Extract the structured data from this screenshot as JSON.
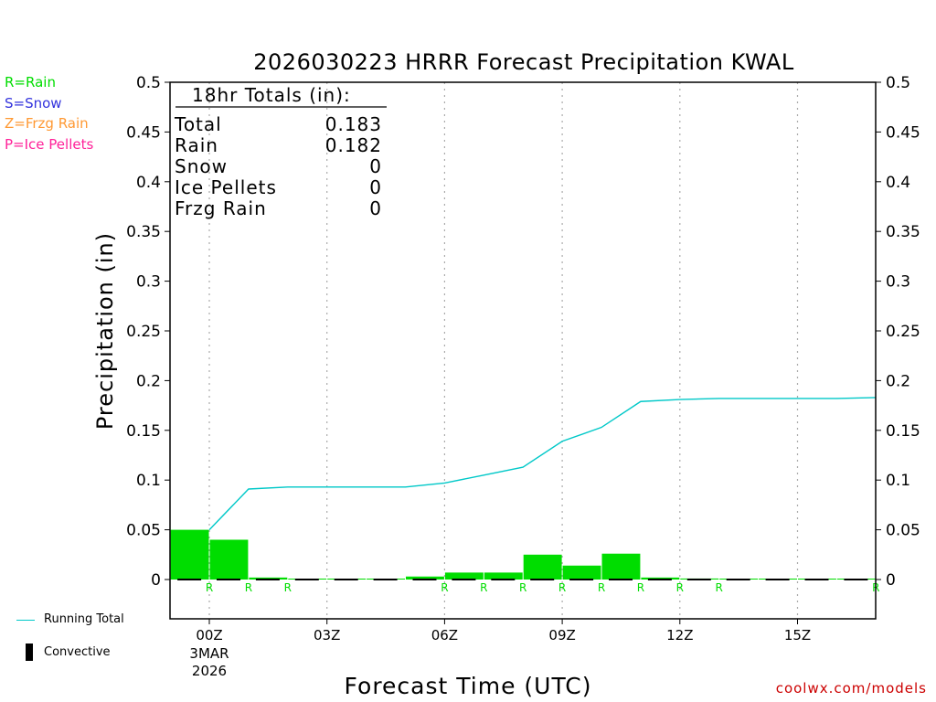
{
  "chart_data": {
    "type": "bar",
    "title": "2026030223 HRRR Forecast Precipitation KWAL",
    "xlabel": "Forecast Time (UTC)",
    "ylabel": "Precipitation (in)",
    "ylim": [
      0,
      0.5
    ],
    "yticks": [
      "0",
      "0.05",
      "0.1",
      "0.15",
      "0.2",
      "0.25",
      "0.3",
      "0.35",
      "0.4",
      "0.45",
      "0.5"
    ],
    "xticks": [
      {
        "hour": 1,
        "label": "00Z",
        "sub1": "3MAR",
        "sub2": "2026"
      },
      {
        "hour": 4,
        "label": "03Z"
      },
      {
        "hour": 7,
        "label": "06Z"
      },
      {
        "hour": 10,
        "label": "09Z"
      },
      {
        "hour": 13,
        "label": "12Z"
      },
      {
        "hour": 16,
        "label": "15Z"
      }
    ],
    "grid": "vertical dotted at 3-hour ticks",
    "hours": [
      1,
      2,
      3,
      4,
      5,
      6,
      7,
      8,
      9,
      10,
      11,
      12,
      13,
      14,
      15,
      16,
      17,
      18
    ],
    "series": [
      {
        "name": "Rain",
        "type": "bar",
        "color": "#00dd00",
        "values": [
          0.05,
          0.04,
          0.002,
          0.0,
          0.0,
          0.0,
          0.003,
          0.007,
          0.007,
          0.025,
          0.014,
          0.026,
          0.002,
          0.001,
          0.0,
          0.0,
          0.0,
          0.0
        ]
      },
      {
        "name": "Running Total",
        "type": "line",
        "color": "#00c8c8",
        "values": [
          0.05,
          0.091,
          0.093,
          0.093,
          0.093,
          0.093,
          0.097,
          0.105,
          0.113,
          0.139,
          0.153,
          0.179,
          0.181,
          0.182,
          0.182,
          0.182,
          0.182,
          0.183
        ]
      }
    ],
    "precip_type_labels": [
      {
        "hour": 1,
        "type": "R"
      },
      {
        "hour": 2,
        "type": "R"
      },
      {
        "hour": 3,
        "type": "R"
      },
      {
        "hour": 7,
        "type": "R"
      },
      {
        "hour": 8,
        "type": "R"
      },
      {
        "hour": 9,
        "type": "R"
      },
      {
        "hour": 10,
        "type": "R"
      },
      {
        "hour": 11,
        "type": "R"
      },
      {
        "hour": 12,
        "type": "R"
      },
      {
        "hour": 13,
        "type": "R"
      },
      {
        "hour": 14,
        "type": "R"
      },
      {
        "hour": 18,
        "type": "R"
      }
    ],
    "totals_box": {
      "heading": "18hr Totals (in):",
      "rows": [
        {
          "label": "Total",
          "value": "0.183"
        },
        {
          "label": "Rain",
          "value": "0.182"
        },
        {
          "label": "Snow",
          "value": "0"
        },
        {
          "label": "Ice Pellets",
          "value": "0"
        },
        {
          "label": "Frzg Rain",
          "value": "0"
        }
      ]
    }
  },
  "legend_types": [
    {
      "text": "R=Rain",
      "color": "#00dd00"
    },
    {
      "text": "S=Snow",
      "color": "#3333dd"
    },
    {
      "text": "Z=Frzg Rain",
      "color": "#ff9933"
    },
    {
      "text": "P=Ice Pellets",
      "color": "#ff2299"
    }
  ],
  "legend_series": {
    "running_total": "Running Total",
    "convective": "Convective",
    "running_total_color": "#00c8c8"
  },
  "footer": "coolwx.com/models"
}
